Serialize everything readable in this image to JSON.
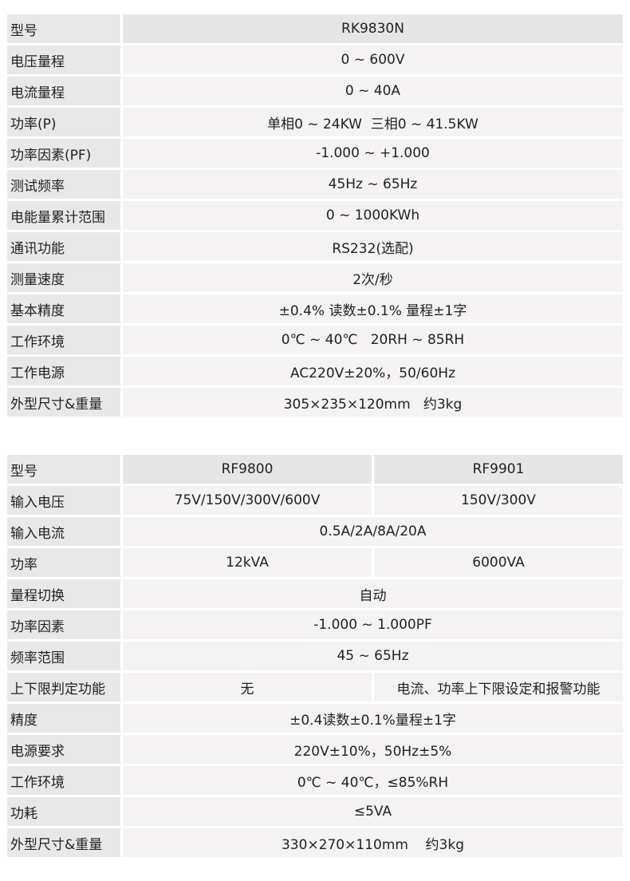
{
  "table1": {
    "rows": [
      {
        "label": "型号",
        "value": "RK9830N"
      },
      {
        "label": "电压量程",
        "value": "0 ~ 600V"
      },
      {
        "label": "电流量程",
        "value": "0 ~ 40A"
      },
      {
        "label": "功率(P)",
        "value": "单相0 ~ 24KW  三相0 ~ 41.5KW"
      },
      {
        "label": "功率因素(PF)",
        "value": "-1.000 ~ +1.000"
      },
      {
        "label": "测试频率",
        "value": "45Hz ~ 65Hz"
      },
      {
        "label": "电能量累计范围",
        "value": "0 ~ 1000KWh"
      },
      {
        "label": "通讯功能",
        "value": "RS232(选配)"
      },
      {
        "label": "测量速度",
        "value": "2次/秒"
      },
      {
        "label": "基本精度",
        "value": "±0.4% 读数±0.1% 量程±1字"
      },
      {
        "label": "工作环境",
        "value": "0℃ ~ 40℃   20RH ~ 85RH"
      },
      {
        "label": "工作电源",
        "value": "AC220V±20%，50/60Hz"
      },
      {
        "label": "外型尺寸&重量",
        "value": "305×235×120mm   约3kg"
      }
    ]
  },
  "table2": {
    "rows": [
      {
        "label": "型号",
        "values": [
          "RF9800",
          "RF9901"
        ]
      },
      {
        "label": "输入电压",
        "values": [
          "75V/150V/300V/600V",
          "150V/300V"
        ]
      },
      {
        "label": "输入电流",
        "values": [
          "0.5A/2A/8A/20A"
        ]
      },
      {
        "label": "功率",
        "values": [
          "12kVA",
          "6000VA"
        ]
      },
      {
        "label": "量程切换",
        "values": [
          "自动"
        ]
      },
      {
        "label": "功率因素",
        "values": [
          "-1.000 ~ 1.000PF"
        ]
      },
      {
        "label": "频率范围",
        "values": [
          "45 ~ 65Hz"
        ]
      },
      {
        "label": "上下限判定功能",
        "values": [
          "无",
          "电流、功率上下限设定和报警功能"
        ]
      },
      {
        "label": "精度",
        "values": [
          "±0.4读数±0.1%量程±1字"
        ]
      },
      {
        "label": "电源要求",
        "values": [
          "220V±10%，50Hz±5%"
        ]
      },
      {
        "label": "工作环境",
        "values": [
          "0℃ ~ 40℃，≤85%RH"
        ]
      },
      {
        "label": "功耗",
        "values": [
          "≤5VA"
        ]
      },
      {
        "label": "外型尺寸&重量",
        "values": [
          "330×270×110mm    约3kg"
        ]
      }
    ]
  }
}
